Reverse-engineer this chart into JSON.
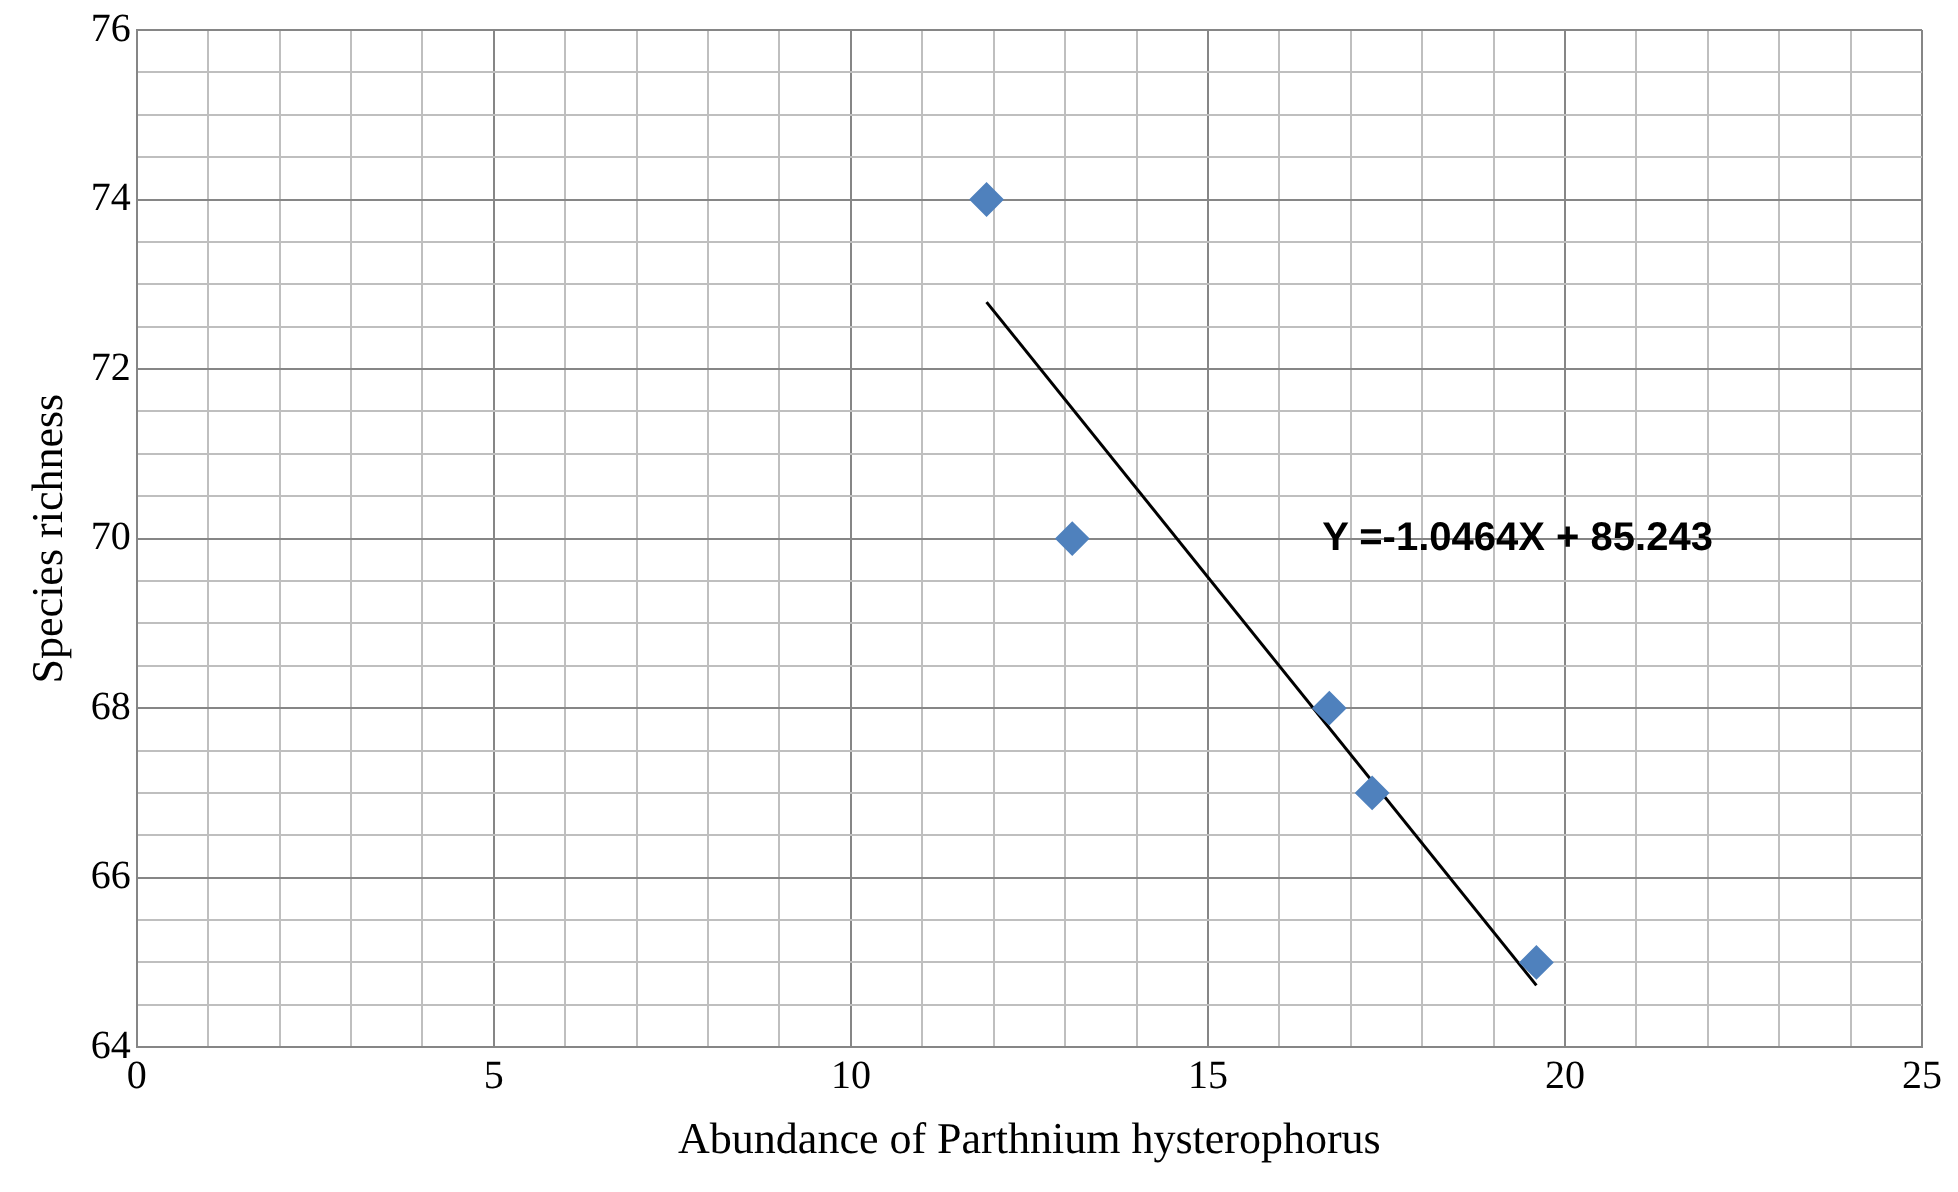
{
  "chart_data": {
    "type": "scatter",
    "xlabel": "Abundance of Parthnium hysterophorus",
    "ylabel": "Species richness",
    "series": [
      {
        "color": "#4f81bd",
        "marker": "diamond",
        "x": [
          11.9,
          13.1,
          16.7,
          17.3,
          19.6
        ],
        "values": [
          74,
          70,
          68,
          67,
          65
        ]
      },
      {
        "type": "line",
        "color": "#000000",
        "marker": "none",
        "line_style": "solid",
        "x": [
          11.9,
          19.6
        ],
        "values": [
          72.79,
          64.73
        ]
      }
    ],
    "annotations": [
      "Y =-1.0464X + 85.243"
    ],
    "xlim": [
      0,
      25
    ],
    "ylim": [
      64,
      76
    ],
    "xticks": [
      0,
      {
        "value": 1,
        "label": null
      },
      {
        "value": 2,
        "label": null
      },
      {
        "value": 3,
        "label": null
      },
      {
        "value": 4,
        "label": null
      },
      5,
      {
        "value": 6,
        "label": null
      },
      {
        "value": 7,
        "label": null
      },
      {
        "value": 8,
        "label": null
      },
      {
        "value": 9,
        "label": null
      },
      10,
      {
        "value": 11,
        "label": null
      },
      {
        "value": 12,
        "label": null
      },
      {
        "value": 13,
        "label": null
      },
      {
        "value": 14,
        "label": null
      },
      15,
      {
        "value": 16,
        "label": null
      },
      {
        "value": 17,
        "label": null
      },
      {
        "value": 18,
        "label": null
      },
      {
        "value": 19,
        "label": null
      },
      20,
      {
        "value": 21,
        "label": null
      },
      {
        "value": 22,
        "label": null
      },
      {
        "value": 23,
        "label": null
      },
      {
        "value": 24,
        "label": null
      },
      25
    ],
    "yticks": [
      64,
      {
        "value": 64.5,
        "label": null
      },
      {
        "value": 65,
        "label": null
      },
      {
        "value": 65.5,
        "label": null
      },
      66,
      {
        "value": 66.5,
        "label": null
      },
      {
        "value": 67,
        "label": null
      },
      {
        "value": 67.5,
        "label": null
      },
      68,
      {
        "value": 68.5,
        "label": null
      },
      {
        "value": 69,
        "label": null
      },
      {
        "value": 69.5,
        "label": null
      },
      70,
      {
        "value": 70.5,
        "label": null
      },
      {
        "value": 71,
        "label": null
      },
      {
        "value": 71.5,
        "label": null
      },
      72,
      {
        "value": 72.5,
        "label": null
      },
      {
        "value": 73,
        "label": null
      },
      {
        "value": 73.5,
        "label": null
      },
      74,
      {
        "value": 74.5,
        "label": null
      },
      {
        "value": 75,
        "label": null
      },
      {
        "value": 75.5,
        "label": null
      },
      76
    ],
    "grid": true,
    "legend": false
  }
}
